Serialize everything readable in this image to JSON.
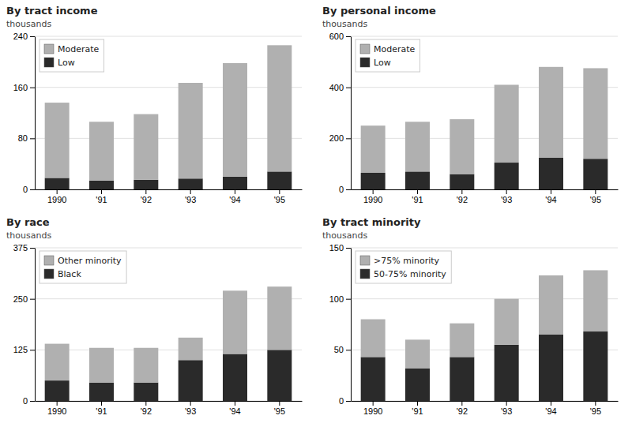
{
  "chart_data": [
    {
      "type": "bar",
      "stacked": true,
      "title": "By tract income",
      "ylabel": "thousands",
      "categories": [
        "1990",
        "'91",
        "'92",
        "'93",
        "'94",
        "'95"
      ],
      "series": [
        {
          "name": "Low",
          "color": "#2a2a2a",
          "values": [
            18,
            14,
            15,
            17,
            20,
            28
          ]
        },
        {
          "name": "Moderate",
          "color": "#b0b0b0",
          "values": [
            118,
            92,
            103,
            150,
            178,
            198
          ]
        }
      ],
      "ylim": [
        0,
        240
      ],
      "yticks": [
        0,
        80,
        160,
        240
      ],
      "grid": true,
      "legend": "upper left"
    },
    {
      "type": "bar",
      "stacked": true,
      "title": "By personal income",
      "ylabel": "thousands",
      "categories": [
        "1990",
        "'91",
        "'92",
        "'93",
        "'94",
        "'95"
      ],
      "series": [
        {
          "name": "Low",
          "color": "#2a2a2a",
          "values": [
            65,
            70,
            60,
            105,
            125,
            120
          ]
        },
        {
          "name": "Moderate",
          "color": "#b0b0b0",
          "values": [
            185,
            195,
            215,
            305,
            355,
            355
          ]
        }
      ],
      "ylim": [
        0,
        600
      ],
      "yticks": [
        0,
        200,
        400,
        600
      ],
      "grid": true,
      "legend": "upper left"
    },
    {
      "type": "bar",
      "stacked": true,
      "title": "By race",
      "ylabel": "thousands",
      "categories": [
        "1990",
        "'91",
        "'92",
        "'93",
        "'94",
        "'95"
      ],
      "series": [
        {
          "name": "Black",
          "color": "#2a2a2a",
          "values": [
            50,
            45,
            45,
            100,
            115,
            125
          ]
        },
        {
          "name": "Other minority",
          "color": "#b0b0b0",
          "values": [
            90,
            85,
            85,
            55,
            155,
            155
          ]
        }
      ],
      "ylim": [
        0,
        375
      ],
      "yticks": [
        0,
        125,
        250,
        375
      ],
      "grid": true,
      "legend": "upper left"
    },
    {
      "type": "bar",
      "stacked": true,
      "title": "By tract minority",
      "ylabel": "thousands",
      "categories": [
        "1990",
        "'91",
        "'92",
        "'93",
        "'94",
        "'95"
      ],
      "series": [
        {
          "name": "50-75% minority",
          "color": "#2a2a2a",
          "values": [
            43,
            32,
            43,
            55,
            65,
            68
          ]
        },
        {
          "name": ">75% minority",
          "color": "#b0b0b0",
          "values": [
            37,
            28,
            33,
            45,
            58,
            60
          ]
        }
      ],
      "ylim": [
        0,
        150
      ],
      "yticks": [
        0,
        50,
        100,
        150
      ],
      "grid": true,
      "legend": "upper left"
    }
  ]
}
